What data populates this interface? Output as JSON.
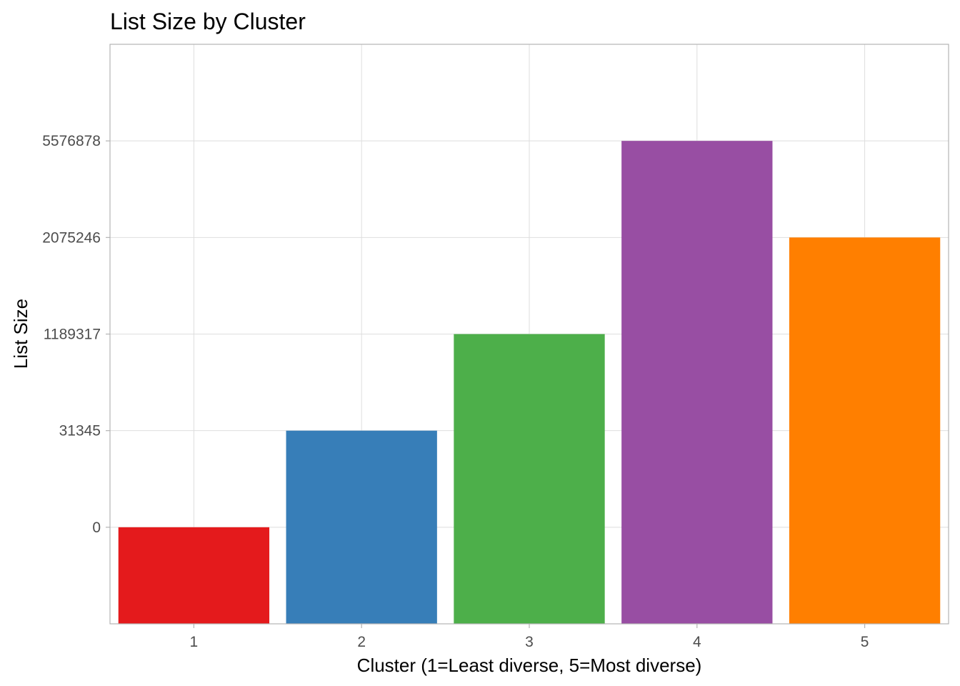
{
  "chart_data": {
    "type": "bar",
    "title": "List Size by Cluster",
    "xlabel": "Cluster (1=Least diverse, 5=Most diverse)",
    "ylabel": "List Size",
    "categories": [
      "1",
      "2",
      "3",
      "4",
      "5"
    ],
    "values": [
      0,
      31345,
      1189317,
      5576878,
      2075246
    ],
    "colors": [
      "#e41a1c",
      "#377eb8",
      "#4daf4a",
      "#984ea3",
      "#ff7f00"
    ],
    "y_tick_labels": [
      "0",
      "31345",
      "1189317",
      "2075246",
      "5576878"
    ],
    "y_scale": "ordinal-rank",
    "ylim": [
      -1,
      5
    ],
    "grid": true
  }
}
